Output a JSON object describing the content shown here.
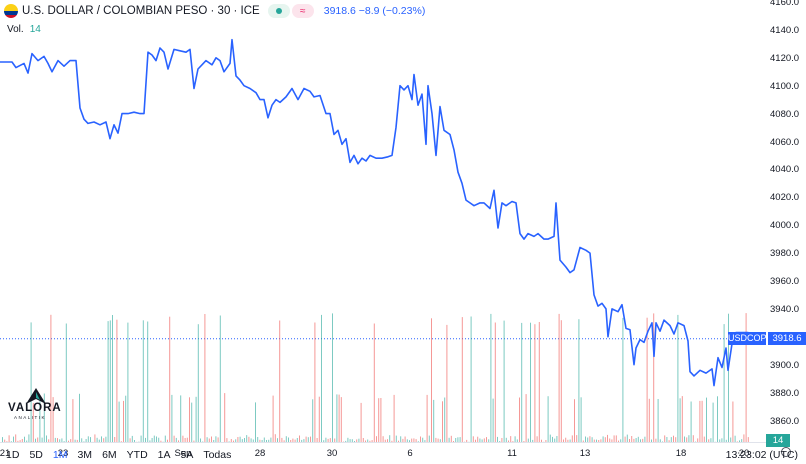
{
  "header": {
    "title": "U.S. DOLLAR / COLOMBIAN PESO · 30 · ICE",
    "price_change": "3918.6 −8.9 (−0.23%)",
    "vol_label": "Vol.",
    "vol_value": "14"
  },
  "logo": {
    "text": "VALORA",
    "sub": "ANALITIK"
  },
  "price_axis": {
    "ticks": [
      "4160.0",
      "4140.0",
      "4120.0",
      "4100.0",
      "4080.0",
      "4060.0",
      "4040.0",
      "4020.0",
      "4000.0",
      "3980.0",
      "3960.0",
      "3940.0",
      "3920.0",
      "3900.0",
      "3880.0",
      "3860.0"
    ]
  },
  "last_price": {
    "symbol": "USDCOP",
    "value": "3918.6",
    "volume": "14"
  },
  "time_axis": {
    "ticks": [
      "21",
      "23",
      "Sep",
      "28",
      "30",
      "6",
      "11",
      "13",
      "18",
      "20"
    ]
  },
  "range_buttons": [
    "1D",
    "5D",
    "1M",
    "3M",
    "6M",
    "YTD",
    "1A",
    "5A",
    "Todas"
  ],
  "active_range": "1M",
  "clock": "13:23:02 (UTC)",
  "colors": {
    "line": "#2962ff",
    "vol_up": "#26a69a",
    "vol_down": "#ef5350"
  }
}
